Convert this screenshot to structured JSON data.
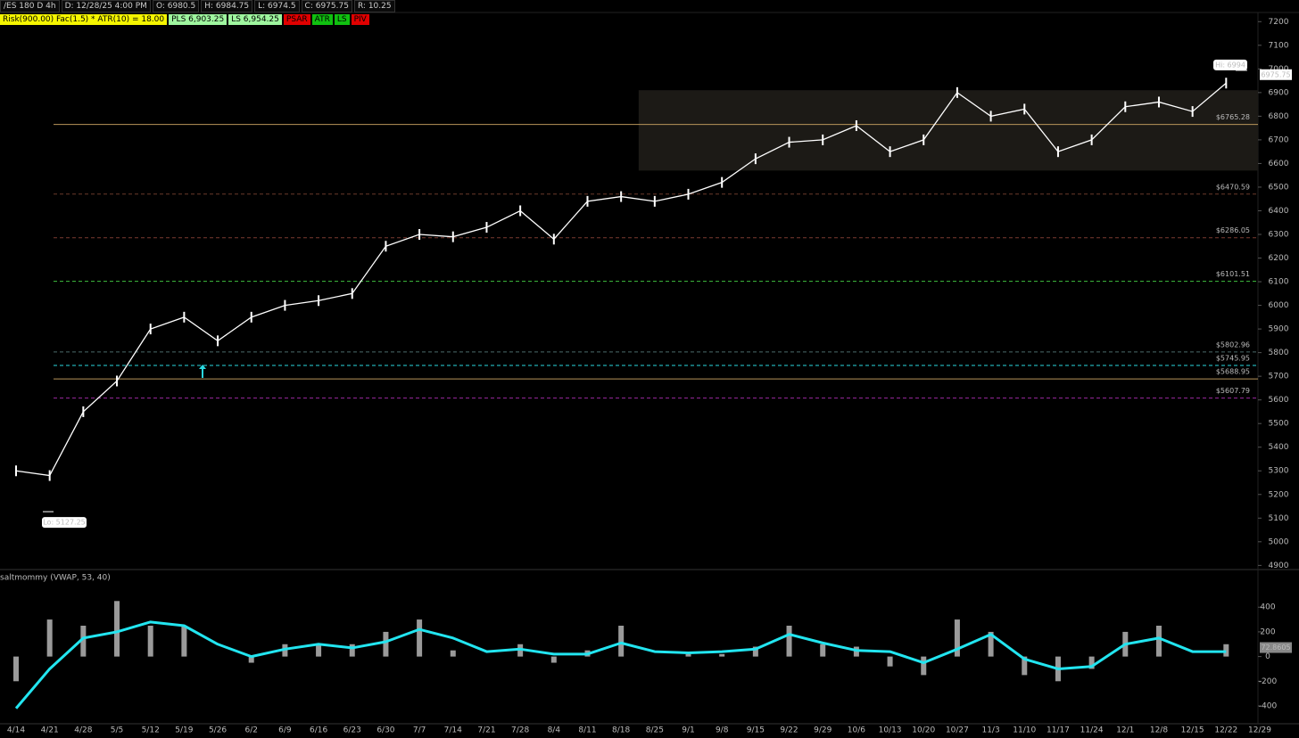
{
  "header": {
    "row1": [
      "/ES 180 D 4h",
      "D: 12/28/25 4:00 PM",
      "O: 6980.5",
      "H: 6984.75",
      "L: 6974.5",
      "C: 6975.75",
      "R: 10.25"
    ],
    "row2": [
      {
        "text": "Risk(900.00) Fac(1.5) * ATR(10) = 18.00",
        "color": "#f5f500"
      },
      {
        "text": "PLS 6,903.25",
        "color": "#9ef59e"
      },
      {
        "text": "LS 6,954.25",
        "color": "#9ef59e"
      },
      {
        "text": "PSAR",
        "color": "#e00000"
      },
      {
        "text": "ATR",
        "color": "#10c010"
      },
      {
        "text": "LS",
        "color": "#10c010"
      },
      {
        "text": "PIV",
        "color": "#e00000"
      }
    ]
  },
  "chart_data": [
    {
      "type": "line",
      "color": "#ffffff",
      "categories": [
        "4/14",
        "4/21",
        "4/28",
        "5/5",
        "5/12",
        "5/19",
        "5/26",
        "6/2",
        "6/9",
        "6/16",
        "6/23",
        "6/30",
        "7/7",
        "7/14",
        "7/21",
        "7/28",
        "8/4",
        "8/11",
        "8/18",
        "8/25",
        "9/1",
        "9/8",
        "9/15",
        "9/22",
        "9/29",
        "10/6",
        "10/13",
        "10/20",
        "10/27",
        "11/3",
        "11/10",
        "11/17",
        "11/24",
        "12/1",
        "12/8",
        "12/15",
        "12/22",
        "12/29"
      ],
      "values": [
        5300,
        5280,
        5550,
        5680,
        5900,
        5950,
        5850,
        5950,
        6000,
        6020,
        6050,
        6250,
        6300,
        6290,
        6330,
        6400,
        6280,
        6440,
        6460,
        6440,
        6470,
        6520,
        6620,
        6690,
        6700,
        6760,
        6650,
        6700,
        6900,
        6800,
        6830,
        6650,
        6700,
        6840,
        6860,
        6820,
        6940,
        null
      ],
      "ylim": [
        4890,
        7235
      ],
      "yticks": [
        4900,
        5000,
        5100,
        5200,
        5300,
        5400,
        5500,
        5600,
        5700,
        5800,
        5900,
        6000,
        6100,
        6200,
        6300,
        6400,
        6500,
        6600,
        6700,
        6800,
        6900,
        7000,
        7100,
        7200
      ],
      "grid": false,
      "zone": {
        "range": [
          6570,
          6910
        ],
        "from": "8/25",
        "color": "#1c1a16"
      },
      "levels": [
        {
          "value": 6765.28,
          "label": "$6765.28",
          "color": "#b8955a",
          "dash": "solid"
        },
        {
          "value": 6470.59,
          "label": "$6470.59",
          "color": "#6b3a2a",
          "dash": "dashed"
        },
        {
          "value": 6286.05,
          "label": "$6286.05",
          "color": "#7a3a30",
          "dash": "dashed"
        },
        {
          "value": 6101.51,
          "label": "$6101.51",
          "color": "#3fbf3f",
          "dash": "dashed"
        },
        {
          "value": 5802.96,
          "label": "$5802.96",
          "color": "#4a6a6a",
          "dash": "dashed"
        },
        {
          "value": 5745.95,
          "label": "$5745.95",
          "color": "#2ad8e0",
          "dash": "dashed"
        },
        {
          "value": 5688.95,
          "label": "$5688.95",
          "color": "#b8955a",
          "dash": "solid"
        },
        {
          "value": 5607.79,
          "label": "$5607.79",
          "color": "#9a2aa0",
          "dash": "dashed"
        }
      ],
      "hi": 6994,
      "hi_label": "Hi: 6994",
      "lo": 5127.25,
      "lo_label": "Lo: 5127.25",
      "last": 6975.75
    },
    {
      "type": "bar",
      "title": "saltmommy (VWAP, 53, 40)",
      "color": "#9a9a9a",
      "categories": [
        "4/14",
        "4/21",
        "4/28",
        "5/5",
        "5/12",
        "5/19",
        "5/26",
        "6/2",
        "6/9",
        "6/16",
        "6/23",
        "6/30",
        "7/7",
        "7/14",
        "7/21",
        "7/28",
        "8/4",
        "8/11",
        "8/18",
        "8/25",
        "9/1",
        "9/8",
        "9/15",
        "9/22",
        "9/29",
        "10/6",
        "10/13",
        "10/20",
        "10/27",
        "11/3",
        "11/10",
        "11/17",
        "11/24",
        "12/1",
        "12/8",
        "12/15",
        "12/22",
        "12/29"
      ],
      "values": [
        -200,
        300,
        250,
        450,
        250,
        250,
        0,
        -50,
        100,
        100,
        100,
        200,
        300,
        50,
        0,
        100,
        -50,
        50,
        250,
        0,
        20,
        20,
        80,
        250,
        100,
        80,
        -80,
        -150,
        300,
        200,
        -150,
        -200,
        -100,
        200,
        250,
        0,
        100,
        null
      ],
      "line": {
        "color": "#22e5f0",
        "values": [
          -420,
          -100,
          150,
          200,
          280,
          250,
          100,
          0,
          60,
          100,
          70,
          120,
          220,
          150,
          40,
          60,
          20,
          20,
          110,
          40,
          30,
          40,
          60,
          180,
          110,
          50,
          40,
          -50,
          60,
          180,
          -20,
          -100,
          -80,
          100,
          150,
          40,
          40,
          null
        ]
      },
      "ylim": [
        -530,
        575
      ],
      "yticks": [
        -400,
        -200,
        0,
        200,
        400
      ],
      "last": 72.8605
    }
  ]
}
